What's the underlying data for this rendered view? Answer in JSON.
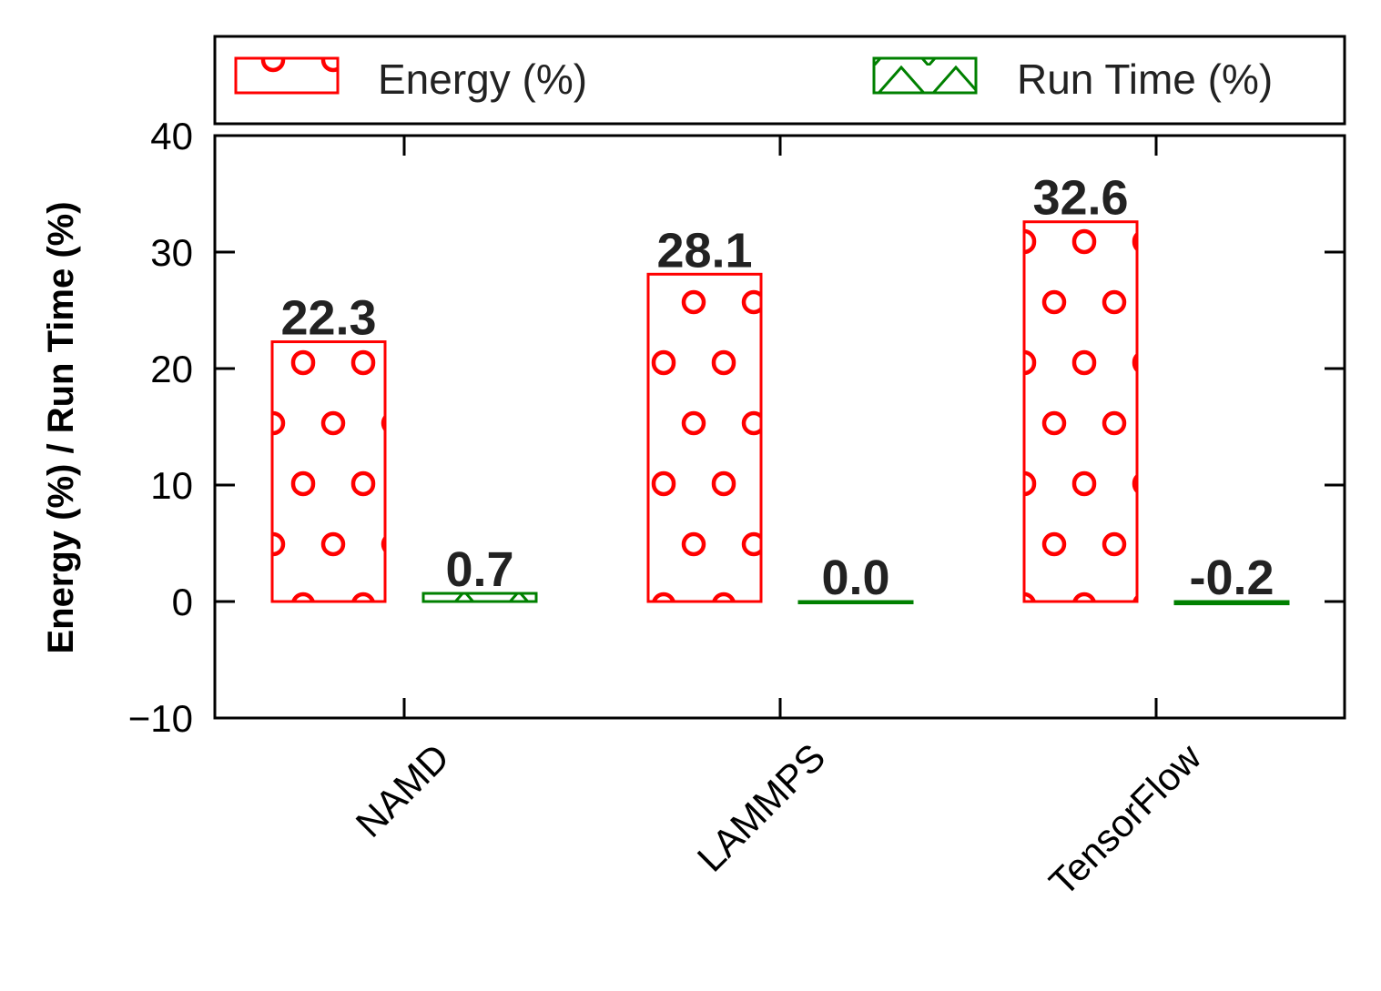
{
  "chart_data": {
    "type": "bar",
    "categories": [
      "NAMD",
      "LAMMPS",
      "TensorFlow"
    ],
    "series": [
      {
        "name": "Energy (%)",
        "values": [
          22.3,
          28.1,
          32.6
        ],
        "labels": [
          "22.3",
          "28.1",
          "32.6"
        ],
        "color": "#ff0000",
        "hatch": "circles"
      },
      {
        "name": "Run Time (%)",
        "values": [
          0.7,
          0.0,
          -0.2
        ],
        "labels": [
          "0.7",
          "0.0",
          "-0.2"
        ],
        "color": "#008000",
        "hatch": "triangles"
      }
    ],
    "ylabel": "Energy (%) / Run Time (%)",
    "ylim": [
      -10,
      40
    ],
    "yticks": [
      -10,
      0,
      10,
      20,
      30,
      40
    ],
    "ytick_labels": [
      "−10",
      "0",
      "10",
      "20",
      "30",
      "40"
    ],
    "legend_position": "top"
  }
}
